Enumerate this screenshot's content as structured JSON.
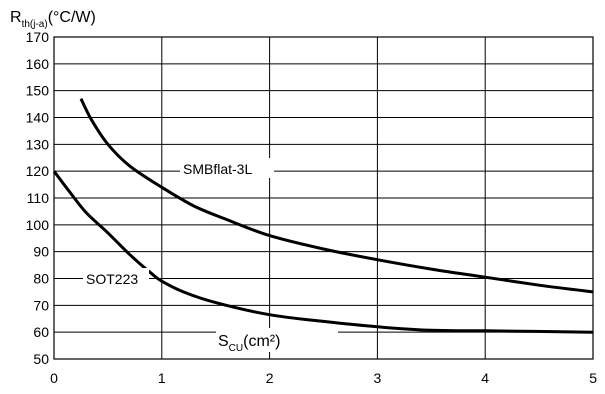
{
  "chart_data": {
    "type": "line",
    "ylabel": {
      "main": "R",
      "sub": "th(j-a)",
      "unit": "(°C/W)"
    },
    "xlabel": {
      "main": "S",
      "sub": "CU",
      "unit": "(cm²)"
    },
    "xlim": [
      0,
      5
    ],
    "ylim": [
      50,
      170
    ],
    "x_ticks": [
      "0",
      "1",
      "2",
      "3",
      "4",
      "5"
    ],
    "y_ticks": [
      "50",
      "60",
      "70",
      "80",
      "90",
      "100",
      "110",
      "120",
      "130",
      "140",
      "150",
      "160",
      "170"
    ],
    "grid": true,
    "series": [
      {
        "name": "SMBflat-3L",
        "color": "#000000",
        "points": [
          [
            0.25,
            147
          ],
          [
            0.35,
            139
          ],
          [
            0.5,
            130
          ],
          [
            0.7,
            122
          ],
          [
            1.0,
            114
          ],
          [
            1.3,
            107
          ],
          [
            1.6,
            102
          ],
          [
            2.0,
            96
          ],
          [
            2.5,
            91
          ],
          [
            3.0,
            87
          ],
          [
            3.5,
            83.5
          ],
          [
            4.0,
            80.5
          ],
          [
            4.5,
            77.5
          ],
          [
            5.0,
            75
          ]
        ]
      },
      {
        "name": "SOT223",
        "color": "#000000",
        "points": [
          [
            0.0,
            120
          ],
          [
            0.15,
            112
          ],
          [
            0.3,
            104.5
          ],
          [
            0.5,
            97
          ],
          [
            0.7,
            89
          ],
          [
            0.9,
            82
          ],
          [
            1.0,
            79
          ],
          [
            1.2,
            75
          ],
          [
            1.5,
            71
          ],
          [
            2.0,
            66.5
          ],
          [
            2.5,
            64
          ],
          [
            3.0,
            62
          ],
          [
            3.5,
            60.7
          ],
          [
            4.0,
            60.5
          ],
          [
            5.0,
            60
          ]
        ]
      }
    ]
  }
}
